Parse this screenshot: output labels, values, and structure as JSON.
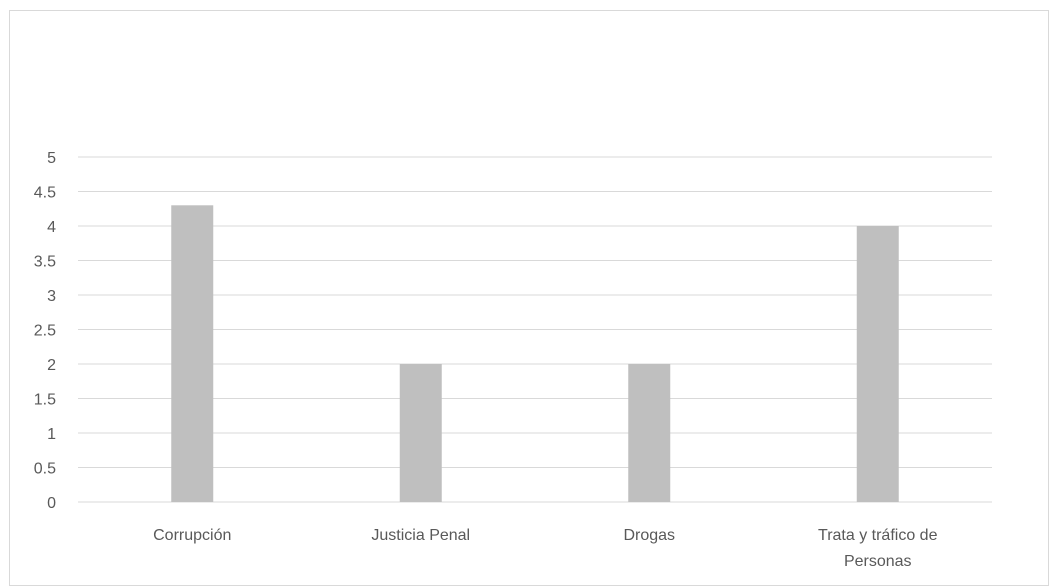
{
  "chart_data": {
    "type": "bar",
    "categories": [
      [
        "Corrupción"
      ],
      [
        "Justicia Penal"
      ],
      [
        "Drogas"
      ],
      [
        "Trata y tráfico de",
        "Personas"
      ]
    ],
    "values": [
      4.3,
      2,
      2,
      4
    ],
    "title": "",
    "xlabel": "",
    "ylabel": "",
    "ylim": [
      0,
      5
    ],
    "yticks": [
      "0",
      "0.5",
      "1",
      "1.5",
      "2",
      "2.5",
      "3",
      "3.5",
      "4",
      "4.5",
      "5"
    ],
    "grid": true,
    "legend": "none",
    "colors": {
      "bar": "#bfbfbf",
      "grid": "#d9d9d9",
      "text": "#595959"
    }
  }
}
